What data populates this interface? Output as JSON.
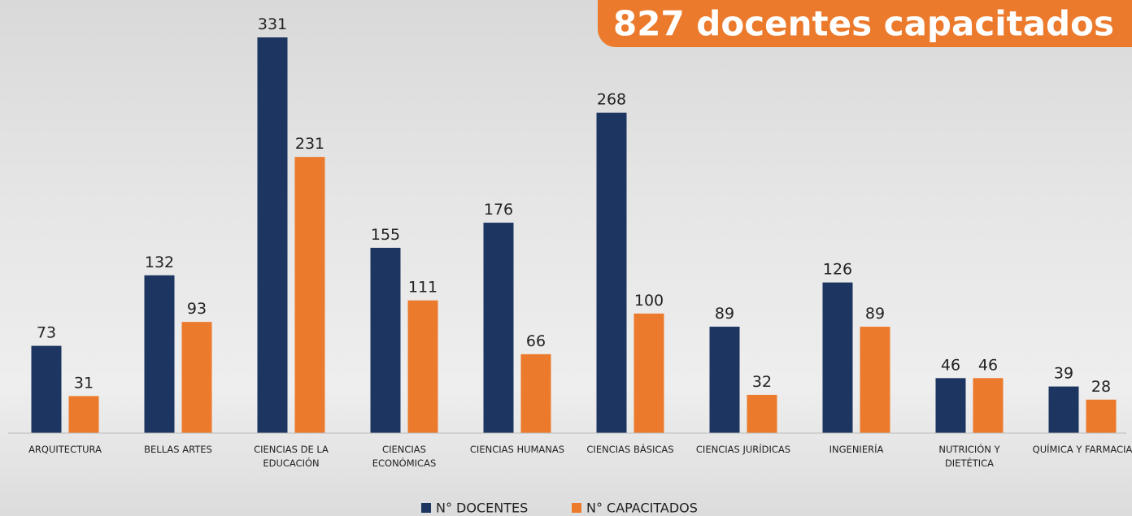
{
  "chart_data": {
    "type": "bar",
    "title": "827 docentes capacitados",
    "categories": [
      "ARQUITECTURA",
      "BELLAS ARTES",
      "CIENCIAS DE LA EDUCACIÓN",
      "CIENCIAS ECONÓMICAS",
      "CIENCIAS HUMANAS",
      "CIENCIAS BÁSICAS",
      "CIENCIAS JURÍDICAS",
      "INGENIERÍA",
      "NUTRICIÓN Y DIETÉTICA",
      "QUÍMICA Y FARMACIA"
    ],
    "series": [
      {
        "name": "N° DOCENTES",
        "color": "#1c3561",
        "values": [
          73,
          132,
          331,
          155,
          176,
          268,
          89,
          126,
          46,
          39
        ]
      },
      {
        "name": "N° CAPACITADOS",
        "color": "#ec7a2c",
        "values": [
          31,
          93,
          231,
          111,
          66,
          100,
          32,
          89,
          46,
          28
        ]
      }
    ],
    "legend": "bottom"
  }
}
